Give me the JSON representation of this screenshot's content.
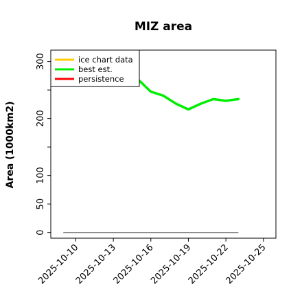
{
  "chart_data": {
    "type": "line",
    "title": "MIZ area",
    "xlabel": "",
    "ylabel": "Area (1000km2)",
    "xlim": [
      "2025-10-08",
      "2025-10-26"
    ],
    "ylim": [
      -10,
      320
    ],
    "x_ticks": [
      "2025-10-10",
      "2025-10-13",
      "2025-10-16",
      "2025-10-19",
      "2025-10-22",
      "2025-10-25"
    ],
    "y_ticks": [
      0,
      50,
      100,
      150,
      200,
      250,
      300
    ],
    "y_tick_labels": [
      "0",
      "50",
      "100",
      "",
      "200",
      "",
      "300"
    ],
    "grid": false,
    "legend_position": "top-left",
    "series": [
      {
        "name": "ice chart data",
        "color": "#ffcc00",
        "x": [],
        "y": []
      },
      {
        "name": "best est.",
        "color": "#00ee00",
        "x": [
          "2025-10-09",
          "2025-10-10",
          "2025-10-11",
          "2025-10-12",
          "2025-10-13",
          "2025-10-14",
          "2025-10-15",
          "2025-10-16",
          "2025-10-17",
          "2025-10-18",
          "2025-10-19",
          "2025-10-20",
          "2025-10-21",
          "2025-10-22",
          "2025-10-23"
        ],
        "y": [
          265,
          268,
          272,
          278,
          285,
          282,
          268,
          247,
          240,
          226,
          216,
          226,
          234,
          231,
          234
        ]
      },
      {
        "name": "persistence",
        "color": "#ff0000",
        "x": [],
        "y": []
      }
    ],
    "baseline": {
      "color": "#808080",
      "x": [
        "2025-10-09",
        "2025-10-23"
      ],
      "y": [
        0,
        0
      ]
    }
  }
}
